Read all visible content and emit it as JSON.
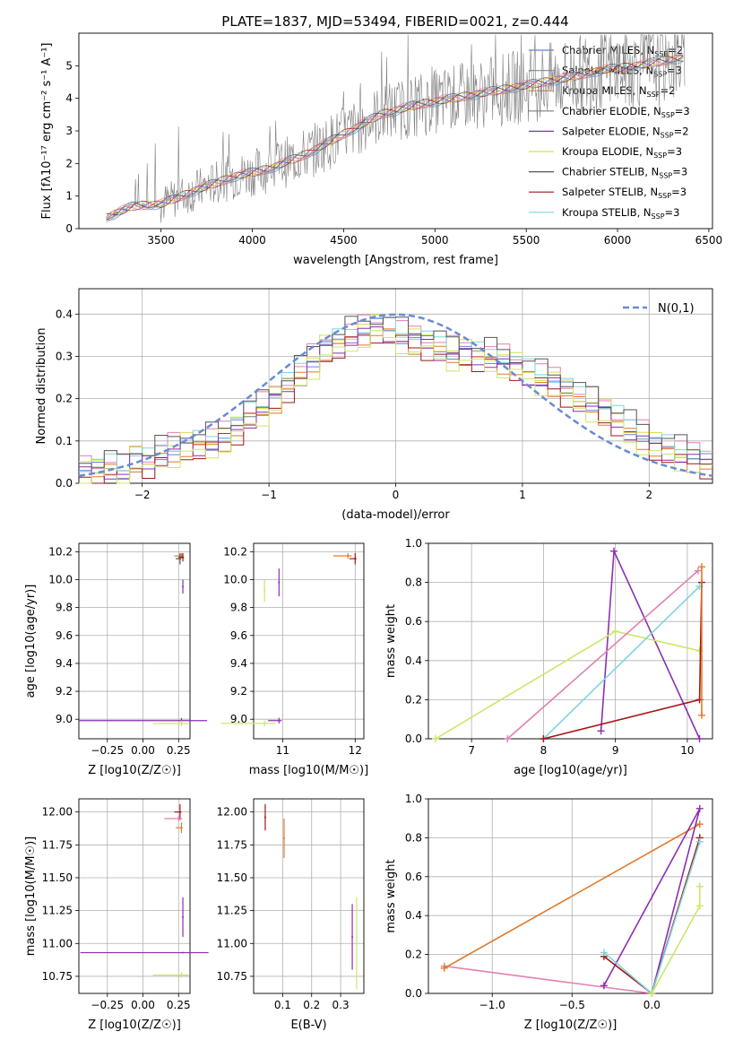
{
  "figure_title": "PLATE=1837, MJD=53494, FIBERID=0021, z=0.444",
  "colors": {
    "c1": "#6b7fd0",
    "c2": "#8e9aa8",
    "c3": "#e07a2c",
    "c4": "#7f7f7f",
    "c5": "#8b2fb0",
    "c6": "#d6e04a",
    "c7": "#555555",
    "c8": "#a01616",
    "c9": "#7fd6d9",
    "pink": "#e37fb0",
    "lime": "#c8e86a",
    "norm": "#6a8ad6",
    "grid": "#b0b0b0"
  },
  "chart_data": [
    {
      "id": "spectrum",
      "type": "line",
      "title": "PLATE=1837, MJD=53494, FIBERID=0021, z=0.444",
      "xlabel": "wavelength [Angstrom, rest frame]",
      "ylabel": "Flux [fλ10⁻¹⁷ erg cm⁻² s⁻¹ A⁻¹]",
      "xlim": [
        3050,
        6520
      ],
      "ylim": [
        0,
        6
      ],
      "xticks": [
        3500,
        4000,
        4500,
        5000,
        5500,
        6000,
        6500
      ],
      "yticks": [
        0,
        1,
        2,
        3,
        4,
        5
      ],
      "grid": false,
      "legend_position": "top-right",
      "legend": [
        "Chabrier MILES, N_SSP=2",
        "Salpeter MILES, N_SSP=3",
        "Kroupa MILES, N_SSP=2",
        "Chabrier ELODIE, N_SSP=3",
        "Salpeter ELODIE, N_SSP=2",
        "Kroupa ELODIE, N_SSP=3",
        "Chabrier STELIB, N_SSP=3",
        "Salpeter STELIB, N_SSP=3",
        "Kroupa STELIB, N_SSP=3"
      ],
      "data_trend": {
        "x": [
          3200,
          3350,
          3500,
          3700,
          3900,
          4100,
          4300,
          4500,
          4700,
          4900,
          5100,
          5300,
          5500,
          5700,
          5900,
          6100,
          6300,
          6370
        ],
        "y": [
          0.35,
          0.7,
          0.75,
          1.2,
          1.6,
          1.85,
          2.3,
          2.9,
          3.5,
          3.8,
          4.0,
          4.2,
          4.4,
          4.6,
          4.85,
          5.0,
          5.2,
          5.25
        ]
      }
    },
    {
      "id": "residuals",
      "type": "line",
      "xlabel": "(data-model)/error",
      "ylabel": "Normed distribution",
      "xlim": [
        -2.5,
        2.5
      ],
      "ylim": [
        0,
        0.46
      ],
      "xticks": [
        -2,
        -1,
        0,
        1,
        2
      ],
      "yticks": [
        0.0,
        0.1,
        0.2,
        0.3,
        0.4
      ],
      "grid": true,
      "legend_position": "top-right",
      "legend": [
        "N(0,1)"
      ],
      "bin_width": 0.1,
      "hist_x": [
        -2.5,
        -2.4,
        -2.3,
        -2.2,
        -2.1,
        -2.0,
        -1.9,
        -1.8,
        -1.7,
        -1.6,
        -1.5,
        -1.4,
        -1.3,
        -1.2,
        -1.1,
        -1.0,
        -0.9,
        -0.8,
        -0.7,
        -0.6,
        -0.5,
        -0.4,
        -0.3,
        -0.2,
        -0.1,
        0.0,
        0.1,
        0.2,
        0.3,
        0.4,
        0.5,
        0.6,
        0.7,
        0.8,
        0.9,
        1.0,
        1.1,
        1.2,
        1.3,
        1.4,
        1.5,
        1.6,
        1.7,
        1.8,
        1.9,
        2.0,
        2.1,
        2.2,
        2.3,
        2.4
      ],
      "hist_y": [
        0.03,
        0.03,
        0.04,
        0.03,
        0.06,
        0.05,
        0.07,
        0.08,
        0.09,
        0.09,
        0.1,
        0.11,
        0.13,
        0.16,
        0.18,
        0.2,
        0.23,
        0.26,
        0.29,
        0.32,
        0.33,
        0.35,
        0.36,
        0.37,
        0.36,
        0.35,
        0.34,
        0.33,
        0.32,
        0.31,
        0.31,
        0.3,
        0.3,
        0.29,
        0.28,
        0.26,
        0.25,
        0.24,
        0.22,
        0.2,
        0.19,
        0.17,
        0.15,
        0.13,
        0.11,
        0.09,
        0.08,
        0.07,
        0.06,
        0.05
      ],
      "hist_offsets": [
        0.0,
        0.02,
        -0.015,
        0.01,
        -0.02,
        0.015,
        -0.01,
        0.025,
        -0.025
      ]
    },
    {
      "id": "age-vs-Z",
      "type": "scatter",
      "xlabel": "Z [log10(Z/Z☉)]",
      "ylabel": "age  [log10(age/yr)]",
      "xlim": [
        -0.45,
        0.33
      ],
      "ylim": [
        8.86,
        10.26
      ],
      "xticks": [
        -0.25,
        0.0,
        0.25
      ],
      "yticks": [
        9.0,
        9.2,
        9.4,
        9.6,
        9.8,
        10.0,
        10.2
      ],
      "grid": true,
      "points": [
        {
          "x": 0.27,
          "y": 10.17,
          "xerr": 0.05,
          "yerr": 0.02,
          "color": "c3"
        },
        {
          "x": 0.28,
          "y": 10.16,
          "xerr": 0.03,
          "yerr": 0.03,
          "color": "c8"
        },
        {
          "x": 0.26,
          "y": 10.15,
          "xerr": 0.03,
          "yerr": 0.04,
          "color": "c7"
        },
        {
          "x": 0.28,
          "y": 9.95,
          "xerr": 0.0,
          "yerr": 0.05,
          "color": "c5"
        },
        {
          "x": 0.27,
          "y": 8.99,
          "xerr": 0.72,
          "yerr": 0.02,
          "color": "c5"
        },
        {
          "x": 0.27,
          "y": 8.97,
          "xerr": 0.2,
          "yerr": 0.02,
          "color": "lime"
        }
      ]
    },
    {
      "id": "age-vs-mass",
      "type": "scatter",
      "xlabel": "mass [log10(M/M☉)]",
      "ylabel": "",
      "xlim": [
        10.6,
        12.12
      ],
      "ylim": [
        8.86,
        10.26
      ],
      "xticks": [
        11,
        12
      ],
      "yticks": [
        9.0,
        9.2,
        9.4,
        9.6,
        9.8,
        10.0,
        10.2
      ],
      "grid": true,
      "points": [
        {
          "x": 11.9,
          "y": 10.17,
          "xerr": 0.2,
          "yerr": 0.02,
          "color": "c3"
        },
        {
          "x": 12.0,
          "y": 10.15,
          "xerr": 0.08,
          "yerr": 0.04,
          "color": "c8"
        },
        {
          "x": 10.95,
          "y": 9.98,
          "xerr": 0.0,
          "yerr": 0.1,
          "color": "c5"
        },
        {
          "x": 10.75,
          "y": 9.92,
          "xerr": 0.0,
          "yerr": 0.08,
          "color": "lime"
        },
        {
          "x": 10.95,
          "y": 8.99,
          "xerr": 0.15,
          "yerr": 0.02,
          "color": "c5"
        },
        {
          "x": 10.75,
          "y": 8.97,
          "xerr": 0.6,
          "yerr": 0.02,
          "color": "lime"
        }
      ]
    },
    {
      "id": "weight-vs-age",
      "type": "line",
      "xlabel": "age  [log10(age/yr)]",
      "ylabel": "mass weight",
      "xlim": [
        6.4,
        10.35
      ],
      "ylim": [
        0,
        1.0
      ],
      "xticks": [
        7,
        8,
        9,
        10
      ],
      "yticks": [
        0.0,
        0.2,
        0.4,
        0.6,
        0.8,
        1.0
      ],
      "grid": true,
      "series": [
        {
          "color": "c5",
          "x": [
            8.8,
            8.98,
            10.17
          ],
          "y": [
            0.04,
            0.96,
            0.0
          ]
        },
        {
          "color": "lime",
          "x": [
            6.5,
            9.0,
            10.17
          ],
          "y": [
            0.0,
            0.55,
            0.45
          ]
        },
        {
          "color": "pink",
          "x": [
            7.5,
            10.15
          ],
          "y": [
            0.0,
            0.86
          ]
        },
        {
          "color": "c9",
          "x": [
            8.0,
            10.17
          ],
          "y": [
            0.0,
            0.78
          ]
        },
        {
          "color": "c8",
          "x": [
            8.0,
            10.17,
            10.2
          ],
          "y": [
            0.0,
            0.2,
            0.8
          ]
        },
        {
          "color": "c3",
          "x": [
            10.2,
            10.2
          ],
          "y": [
            0.12,
            0.88
          ]
        }
      ]
    },
    {
      "id": "mass-vs-Z",
      "type": "scatter",
      "xlabel": "Z [log10(Z/Z☉)]",
      "ylabel": "mass [log10(M/M☉)]",
      "xlim": [
        -0.45,
        0.33
      ],
      "ylim": [
        10.62,
        12.1
      ],
      "xticks": [
        -0.25,
        0.0,
        0.25
      ],
      "yticks": [
        10.75,
        11.0,
        11.25,
        11.5,
        11.75,
        12.0
      ],
      "grid": true,
      "points": [
        {
          "x": 0.26,
          "y": 12.0,
          "xerr": 0.04,
          "yerr": 0.06,
          "color": "c8"
        },
        {
          "x": 0.25,
          "y": 11.95,
          "xerr": 0.1,
          "yerr": 0.02,
          "color": "pink"
        },
        {
          "x": 0.27,
          "y": 11.88,
          "xerr": 0.04,
          "yerr": 0.04,
          "color": "c3"
        },
        {
          "x": 0.28,
          "y": 11.2,
          "xerr": 0.0,
          "yerr": 0.15,
          "color": "c5"
        },
        {
          "x": 0.28,
          "y": 10.93,
          "xerr": 0.72,
          "yerr": 0.0,
          "color": "c5"
        },
        {
          "x": 0.27,
          "y": 10.76,
          "xerr": 0.2,
          "yerr": 0.02,
          "color": "lime"
        }
      ]
    },
    {
      "id": "mass-vs-EBV",
      "type": "scatter",
      "xlabel": "E(B-V)",
      "ylabel": "",
      "xlim": [
        0.0,
        0.38
      ],
      "ylim": [
        10.62,
        12.1
      ],
      "xticks": [
        0.1,
        0.2,
        0.3
      ],
      "yticks": [
        10.75,
        11.0,
        11.25,
        11.5,
        11.75,
        12.0
      ],
      "grid": true,
      "points": [
        {
          "x": 0.04,
          "y": 11.96,
          "xerr": 0.0,
          "yerr": 0.1,
          "color": "c8"
        },
        {
          "x": 0.105,
          "y": 11.8,
          "xerr": 0.0,
          "yerr": 0.15,
          "color": "c3"
        },
        {
          "x": 0.34,
          "y": 11.05,
          "xerr": 0.0,
          "yerr": 0.25,
          "color": "c5"
        },
        {
          "x": 0.355,
          "y": 11.0,
          "xerr": 0.0,
          "yerr": 0.35,
          "color": "lime"
        }
      ]
    },
    {
      "id": "weight-vs-Z",
      "type": "line",
      "xlabel": "Z [log10(Z/Z☉)]",
      "ylabel": "mass weight",
      "xlim": [
        -1.4,
        0.38
      ],
      "ylim": [
        0,
        1.0
      ],
      "xticks": [
        -1.0,
        -0.5,
        0.0
      ],
      "yticks": [
        0.0,
        0.2,
        0.4,
        0.6,
        0.8,
        1.0
      ],
      "grid": true,
      "series": [
        {
          "color": "pink",
          "x": [
            -1.3,
            0.0
          ],
          "y": [
            0.14,
            0.0
          ]
        },
        {
          "color": "c3",
          "x": [
            -1.3,
            0.3
          ],
          "y": [
            0.13,
            0.87
          ]
        },
        {
          "color": "c5",
          "x": [
            -0.3,
            0.3,
            0.0
          ],
          "y": [
            0.04,
            0.95,
            0.0
          ]
        },
        {
          "color": "c8",
          "x": [
            -0.3,
            0.0,
            0.3
          ],
          "y": [
            0.19,
            0.0,
            0.8
          ]
        },
        {
          "color": "c9",
          "x": [
            -0.3,
            0.0,
            0.3
          ],
          "y": [
            0.21,
            0.0,
            0.78
          ]
        },
        {
          "color": "lime",
          "x": [
            0.0,
            0.3,
            0.3
          ],
          "y": [
            0.0,
            0.45,
            0.55
          ]
        }
      ]
    }
  ]
}
